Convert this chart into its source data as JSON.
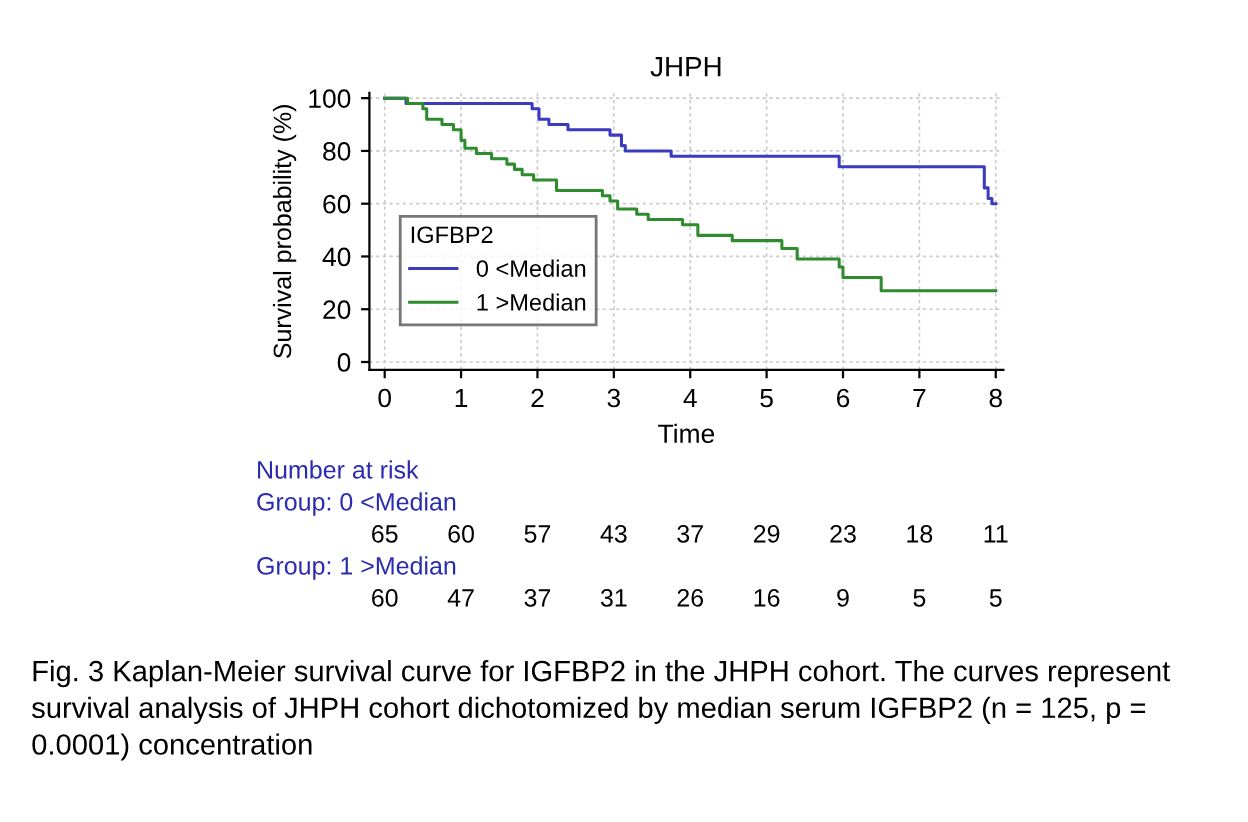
{
  "chart_data": {
    "type": "step",
    "title": "JHPH",
    "xlabel": "Time",
    "ylabel": "Survival probability (%)",
    "legend_title": "IGFBP2",
    "series": [
      {
        "name": "0 <Median",
        "color": "#3b3bbf",
        "x": [
          0,
          0.28,
          1.93,
          2.02,
          2.15,
          2.4,
          2.95,
          3.1,
          3.15,
          3.75,
          5.95,
          7.85,
          7.9,
          7.95,
          8
        ],
        "values": [
          100,
          98,
          96,
          92,
          90,
          88,
          86,
          82,
          80,
          78,
          74,
          66,
          62,
          60,
          60
        ]
      },
      {
        "name": "1 >Median",
        "color": "#2e8b2e",
        "x": [
          0,
          0.3,
          0.5,
          0.55,
          0.75,
          0.9,
          1.0,
          1.05,
          1.2,
          1.4,
          1.6,
          1.7,
          1.8,
          1.95,
          2.25,
          2.85,
          2.95,
          3.05,
          3.3,
          3.45,
          3.9,
          4.1,
          4.55,
          5.2,
          5.4,
          5.95,
          6.0,
          6.5,
          8
        ],
        "values": [
          100,
          98,
          96,
          92,
          90,
          88,
          84,
          81,
          79,
          77,
          75,
          73,
          71,
          69,
          65,
          63,
          61,
          58,
          56,
          54,
          52,
          48,
          46,
          43,
          39,
          36,
          32,
          27,
          27
        ]
      }
    ],
    "xlim": [
      -0.2,
      8.1
    ],
    "ylim": [
      -3,
      102
    ],
    "xticks": [
      0,
      1,
      2,
      3,
      4,
      5,
      6,
      7,
      8
    ],
    "yticks": [
      0,
      20,
      40,
      60,
      80,
      100
    ],
    "grid": true,
    "legend": "bottom left",
    "marker": "none",
    "line_style": "solid",
    "annotations": [
      "Number at risk",
      "Group: 0 <Median",
      "65 60 57 43 37 29 23 18 11",
      "Group: 1 >Median",
      "60 47 37 31 26 16 9 5 5",
      "Fig. 3 Kaplan-Meier survival curve for IGFBP2 in the JHPH cohort. The curves represent survival analysis of JHPH cohort dichotomized by median serum IGFBP2 (n = 125, p = 0.0001) concentration"
    ]
  }
}
